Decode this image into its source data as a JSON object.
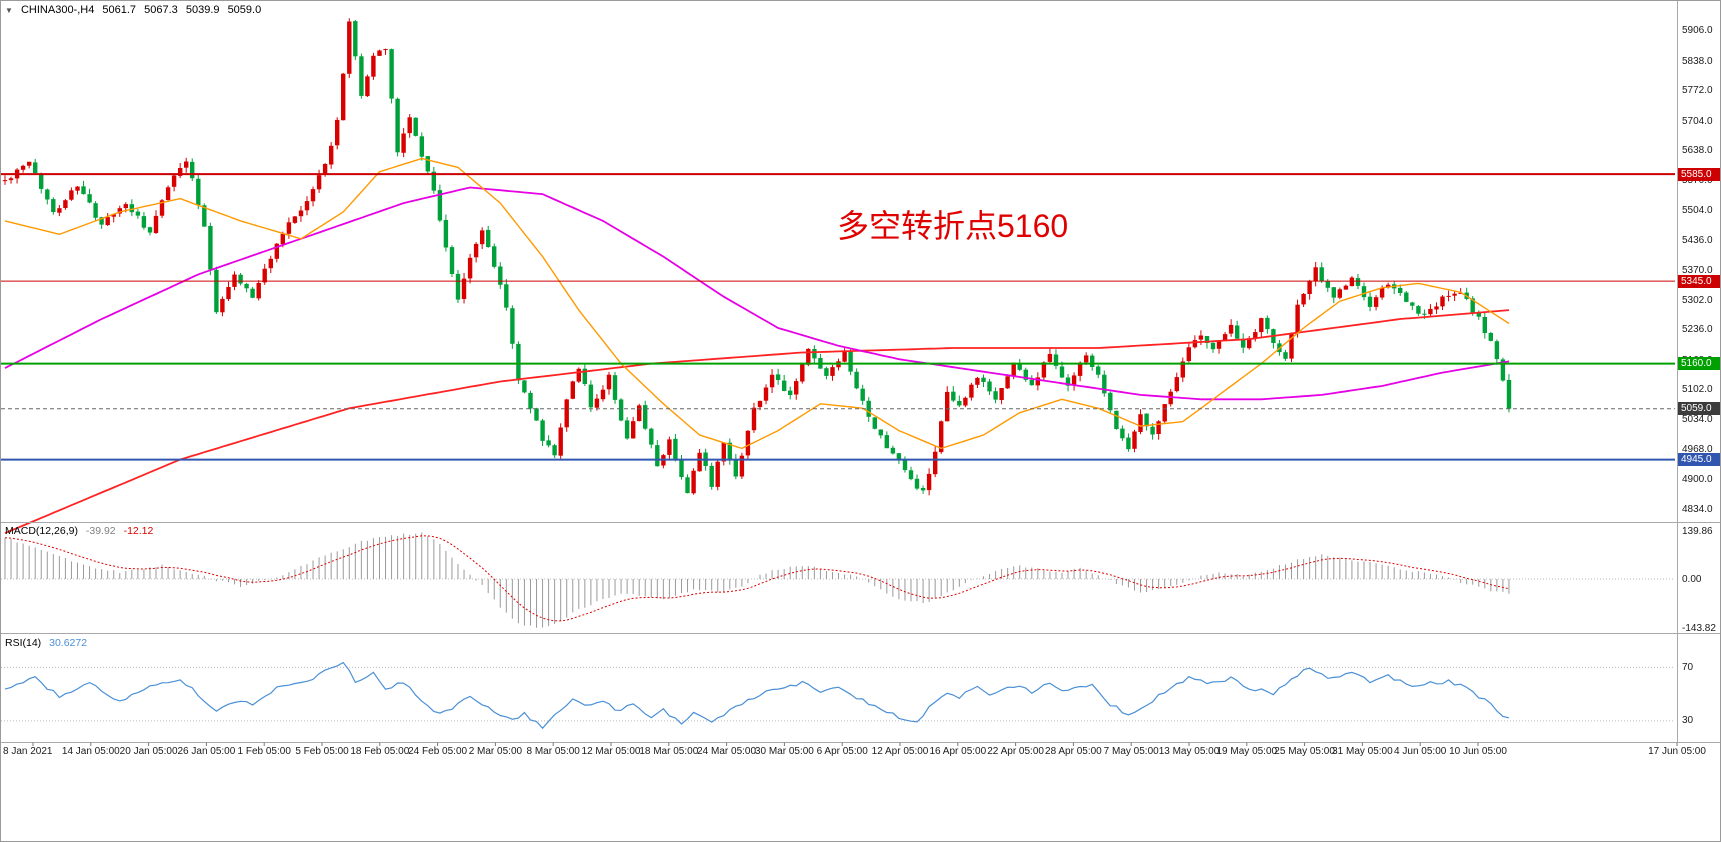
{
  "header": {
    "collapse_icon": "▼",
    "symbol_period": "CHINA300-,H4",
    "open": "5061.7",
    "high": "5067.3",
    "low": "5039.9",
    "close": "5059.0"
  },
  "annotation": {
    "text": "多空转折点5160",
    "color": "#e00000"
  },
  "indicators": {
    "macd_label": "MACD(12,26,9)",
    "macd_value": "-39.92",
    "macd_signal": "-12.12",
    "rsi_label": "RSI(14)",
    "rsi_value": "30.6272"
  },
  "chart_data": {
    "type": "candlestick",
    "symbol": "CHINA300-",
    "timeframe": "H4",
    "last_open": 5061.7,
    "last_high": 5067.3,
    "last_low": 5039.9,
    "last_close": 5059.0,
    "colors": {
      "bull": "#d90000",
      "bear": "#00a13a",
      "background": "#ffffff"
    },
    "ylim": [
      4805,
      5973
    ],
    "price_axis_ticks": [
      5906,
      5838,
      5772,
      5704,
      5638,
      5570,
      5504,
      5436,
      5370,
      5302,
      5236,
      5168,
      5102,
      5034,
      4968,
      4900,
      4834
    ],
    "price_badges": [
      {
        "label": "5585.0",
        "price": 5585,
        "color": "#cc0000"
      },
      {
        "label": "5345.0",
        "price": 5345,
        "color": "#cc0000"
      },
      {
        "label": "5160.0",
        "price": 5160,
        "color": "#00a000"
      },
      {
        "label": "5059.0",
        "price": 5059,
        "color": "#3c3c3c"
      },
      {
        "label": "4945.0",
        "price": 4945,
        "color": "#3056b0"
      }
    ],
    "hlines": [
      {
        "price": 5585,
        "color": "#cc0000",
        "thickness": 2,
        "style": "solid"
      },
      {
        "price": 5345,
        "color": "#cc0000",
        "thickness": 1,
        "style": "solid"
      },
      {
        "price": 5160,
        "color": "#00a000",
        "thickness": 2,
        "style": "solid"
      },
      {
        "price": 4945,
        "color": "#3056b0",
        "thickness": 2,
        "style": "solid"
      },
      {
        "price": 5059,
        "color": "#666666",
        "thickness": 1,
        "style": "dash"
      }
    ],
    "price_keyframes": [
      [
        0,
        5570
      ],
      [
        4,
        5610
      ],
      [
        8,
        5500
      ],
      [
        12,
        5560
      ],
      [
        16,
        5470
      ],
      [
        20,
        5520
      ],
      [
        24,
        5450
      ],
      [
        27,
        5560
      ],
      [
        30,
        5620
      ],
      [
        33,
        5470
      ],
      [
        35,
        5280
      ],
      [
        38,
        5360
      ],
      [
        41,
        5310
      ],
      [
        44,
        5400
      ],
      [
        47,
        5470
      ],
      [
        50,
        5520
      ],
      [
        53,
        5610
      ],
      [
        55,
        5700
      ],
      [
        57,
        5930
      ],
      [
        59,
        5760
      ],
      [
        61,
        5850
      ],
      [
        63,
        5870
      ],
      [
        65,
        5640
      ],
      [
        67,
        5710
      ],
      [
        69,
        5630
      ],
      [
        71,
        5550
      ],
      [
        73,
        5420
      ],
      [
        75,
        5300
      ],
      [
        77,
        5400
      ],
      [
        79,
        5460
      ],
      [
        81,
        5380
      ],
      [
        83,
        5290
      ],
      [
        85,
        5120
      ],
      [
        87,
        5065
      ],
      [
        89,
        4990
      ],
      [
        91,
        4960
      ],
      [
        93,
        5080
      ],
      [
        95,
        5155
      ],
      [
        97,
        5060
      ],
      [
        100,
        5130
      ],
      [
        103,
        4990
      ],
      [
        105,
        5060
      ],
      [
        108,
        4930
      ],
      [
        110,
        4990
      ],
      [
        113,
        4870
      ],
      [
        115,
        4960
      ],
      [
        117,
        4890
      ],
      [
        119,
        4990
      ],
      [
        121,
        4910
      ],
      [
        124,
        5060
      ],
      [
        127,
        5130
      ],
      [
        130,
        5090
      ],
      [
        133,
        5190
      ],
      [
        136,
        5130
      ],
      [
        139,
        5180
      ],
      [
        141,
        5100
      ],
      [
        144,
        5010
      ],
      [
        147,
        4960
      ],
      [
        150,
        4900
      ],
      [
        152,
        4870
      ],
      [
        154,
        4960
      ],
      [
        156,
        5090
      ],
      [
        158,
        5060
      ],
      [
        161,
        5130
      ],
      [
        164,
        5080
      ],
      [
        167,
        5160
      ],
      [
        170,
        5110
      ],
      [
        173,
        5180
      ],
      [
        176,
        5110
      ],
      [
        179,
        5180
      ],
      [
        181,
        5130
      ],
      [
        184,
        5020
      ],
      [
        186,
        4970
      ],
      [
        188,
        5050
      ],
      [
        190,
        5000
      ],
      [
        192,
        5070
      ],
      [
        195,
        5170
      ],
      [
        198,
        5230
      ],
      [
        200,
        5190
      ],
      [
        203,
        5250
      ],
      [
        205,
        5190
      ],
      [
        208,
        5260
      ],
      [
        210,
        5210
      ],
      [
        212,
        5170
      ],
      [
        214,
        5290
      ],
      [
        217,
        5370
      ],
      [
        220,
        5310
      ],
      [
        223,
        5350
      ],
      [
        226,
        5290
      ],
      [
        229,
        5340
      ],
      [
        232,
        5300
      ],
      [
        235,
        5265
      ],
      [
        238,
        5305
      ],
      [
        241,
        5320
      ],
      [
        244,
        5260
      ],
      [
        246,
        5210
      ],
      [
        248,
        5120
      ],
      [
        249,
        5059
      ]
    ],
    "moving_averages": [
      {
        "name": "ma-slow-red",
        "color": "#ff2222",
        "width": 1.8,
        "keyframes": [
          [
            0,
            4780
          ],
          [
            29,
            4945
          ],
          [
            57,
            5060
          ],
          [
            82,
            5120
          ],
          [
            107,
            5160
          ],
          [
            132,
            5185
          ],
          [
            157,
            5195
          ],
          [
            181,
            5195
          ],
          [
            206,
            5215
          ],
          [
            231,
            5260
          ],
          [
            249,
            5280
          ]
        ]
      },
      {
        "name": "ma-mid-magenta",
        "color": "#e600e6",
        "width": 1.8,
        "keyframes": [
          [
            0,
            5150
          ],
          [
            16,
            5260
          ],
          [
            32,
            5360
          ],
          [
            49,
            5440
          ],
          [
            66,
            5520
          ],
          [
            77,
            5555
          ],
          [
            89,
            5540
          ],
          [
            99,
            5480
          ],
          [
            109,
            5400
          ],
          [
            119,
            5310
          ],
          [
            128,
            5240
          ],
          [
            138,
            5200
          ],
          [
            148,
            5170
          ],
          [
            158,
            5150
          ],
          [
            168,
            5130
          ],
          [
            178,
            5110
          ],
          [
            188,
            5090
          ],
          [
            198,
            5080
          ],
          [
            208,
            5080
          ],
          [
            218,
            5090
          ],
          [
            228,
            5110
          ],
          [
            238,
            5140
          ],
          [
            249,
            5165
          ]
        ]
      },
      {
        "name": "ma-fast-orange",
        "color": "#ff9900",
        "width": 1.4,
        "keyframes": [
          [
            0,
            5480
          ],
          [
            9,
            5450
          ],
          [
            19,
            5500
          ],
          [
            29,
            5530
          ],
          [
            39,
            5480
          ],
          [
            49,
            5440
          ],
          [
            56,
            5500
          ],
          [
            62,
            5590
          ],
          [
            69,
            5620
          ],
          [
            75,
            5600
          ],
          [
            82,
            5520
          ],
          [
            89,
            5400
          ],
          [
            95,
            5280
          ],
          [
            102,
            5160
          ],
          [
            109,
            5070
          ],
          [
            115,
            5000
          ],
          [
            122,
            4970
          ],
          [
            128,
            5010
          ],
          [
            135,
            5070
          ],
          [
            142,
            5060
          ],
          [
            148,
            5010
          ],
          [
            155,
            4970
          ],
          [
            162,
            5000
          ],
          [
            168,
            5050
          ],
          [
            175,
            5080
          ],
          [
            181,
            5060
          ],
          [
            188,
            5020
          ],
          [
            195,
            5030
          ],
          [
            201,
            5090
          ],
          [
            208,
            5160
          ],
          [
            215,
            5240
          ],
          [
            221,
            5300
          ],
          [
            228,
            5330
          ],
          [
            234,
            5340
          ],
          [
            241,
            5320
          ],
          [
            249,
            5250
          ]
        ]
      }
    ],
    "macd": {
      "label": "MACD(12,26,9)",
      "value": -39.92,
      "signal": -12.12,
      "histogram_color": "#9a9a9a",
      "signal_color": "#dd0000",
      "ylim": [
        -154,
        163
      ],
      "axis_ticks": [
        {
          "label": "139.86",
          "value": 139.86
        },
        {
          "label": "0.00",
          "value": 0
        },
        {
          "label": "-143.82",
          "value": -143.82
        }
      ],
      "keyframes": [
        [
          0,
          120
        ],
        [
          7,
          80
        ],
        [
          13,
          40
        ],
        [
          19,
          20
        ],
        [
          26,
          40
        ],
        [
          32,
          10
        ],
        [
          39,
          -20
        ],
        [
          46,
          10
        ],
        [
          52,
          60
        ],
        [
          59,
          110
        ],
        [
          66,
          130
        ],
        [
          69,
          135
        ],
        [
          72,
          100
        ],
        [
          75,
          40
        ],
        [
          79,
          -20
        ],
        [
          82,
          -80
        ],
        [
          85,
          -130
        ],
        [
          89,
          -143
        ],
        [
          92,
          -120
        ],
        [
          95,
          -90
        ],
        [
          99,
          -60
        ],
        [
          102,
          -40
        ],
        [
          105,
          -50
        ],
        [
          109,
          -60
        ],
        [
          112,
          -40
        ],
        [
          115,
          -30
        ],
        [
          119,
          -40
        ],
        [
          122,
          -20
        ],
        [
          125,
          10
        ],
        [
          128,
          30
        ],
        [
          132,
          40
        ],
        [
          135,
          30
        ],
        [
          138,
          20
        ],
        [
          142,
          0
        ],
        [
          145,
          -30
        ],
        [
          148,
          -60
        ],
        [
          152,
          -70
        ],
        [
          155,
          -50
        ],
        [
          158,
          -20
        ],
        [
          162,
          10
        ],
        [
          165,
          30
        ],
        [
          168,
          40
        ],
        [
          171,
          30
        ],
        [
          175,
          20
        ],
        [
          178,
          30
        ],
        [
          181,
          10
        ],
        [
          185,
          -20
        ],
        [
          188,
          -40
        ],
        [
          191,
          -30
        ],
        [
          195,
          -10
        ],
        [
          198,
          10
        ],
        [
          201,
          20
        ],
        [
          205,
          10
        ],
        [
          208,
          20
        ],
        [
          211,
          40
        ],
        [
          215,
          60
        ],
        [
          218,
          70
        ],
        [
          221,
          60
        ],
        [
          225,
          50
        ],
        [
          228,
          40
        ],
        [
          231,
          30
        ],
        [
          234,
          20
        ],
        [
          238,
          10
        ],
        [
          241,
          -10
        ],
        [
          244,
          -25
        ],
        [
          248,
          -40
        ],
        [
          249,
          -41
        ]
      ]
    },
    "rsi": {
      "label": "RSI(14)",
      "value": 30.6272,
      "line_color": "#4a8fd6",
      "levels": [
        70,
        30
      ],
      "ylim": [
        15,
        95
      ],
      "keyframes": [
        [
          0,
          55
        ],
        [
          5,
          62
        ],
        [
          9,
          48
        ],
        [
          14,
          58
        ],
        [
          19,
          45
        ],
        [
          24,
          55
        ],
        [
          29,
          62
        ],
        [
          32,
          50
        ],
        [
          35,
          38
        ],
        [
          38,
          45
        ],
        [
          41,
          42
        ],
        [
          44,
          52
        ],
        [
          47,
          58
        ],
        [
          51,
          62
        ],
        [
          54,
          70
        ],
        [
          56,
          74
        ],
        [
          58,
          60
        ],
        [
          61,
          65
        ],
        [
          63,
          55
        ],
        [
          66,
          58
        ],
        [
          69,
          45
        ],
        [
          72,
          35
        ],
        [
          75,
          42
        ],
        [
          77,
          48
        ],
        [
          80,
          40
        ],
        [
          84,
          30
        ],
        [
          86,
          35
        ],
        [
          89,
          25
        ],
        [
          91,
          35
        ],
        [
          94,
          45
        ],
        [
          96,
          42
        ],
        [
          99,
          46
        ],
        [
          101,
          38
        ],
        [
          104,
          42
        ],
        [
          107,
          32
        ],
        [
          109,
          38
        ],
        [
          112,
          28
        ],
        [
          114,
          35
        ],
        [
          117,
          30
        ],
        [
          119,
          35
        ],
        [
          122,
          42
        ],
        [
          125,
          50
        ],
        [
          128,
          55
        ],
        [
          132,
          58
        ],
        [
          135,
          52
        ],
        [
          138,
          56
        ],
        [
          142,
          45
        ],
        [
          145,
          40
        ],
        [
          148,
          32
        ],
        [
          151,
          28
        ],
        [
          153,
          40
        ],
        [
          156,
          52
        ],
        [
          158,
          48
        ],
        [
          161,
          55
        ],
        [
          163,
          50
        ],
        [
          167,
          56
        ],
        [
          170,
          52
        ],
        [
          173,
          58
        ],
        [
          176,
          52
        ],
        [
          180,
          58
        ],
        [
          183,
          42
        ],
        [
          186,
          35
        ],
        [
          190,
          45
        ],
        [
          193,
          55
        ],
        [
          196,
          62
        ],
        [
          200,
          58
        ],
        [
          203,
          62
        ],
        [
          206,
          55
        ],
        [
          210,
          50
        ],
        [
          213,
          62
        ],
        [
          216,
          70
        ],
        [
          219,
          62
        ],
        [
          223,
          66
        ],
        [
          226,
          60
        ],
        [
          229,
          64
        ],
        [
          233,
          55
        ],
        [
          236,
          58
        ],
        [
          239,
          60
        ],
        [
          243,
          52
        ],
        [
          246,
          42
        ],
        [
          249,
          31
        ]
      ]
    },
    "time_labels": [
      "8 Jan 2021",
      "14 Jan 05:00",
      "20 Jan 05:00",
      "26 Jan 05:00",
      "1 Feb 05:00",
      "5 Feb 05:00",
      "18 Feb 05:00",
      "24 Feb 05:00",
      "2 Mar 05:00",
      "8 Mar 05:00",
      "12 Mar 05:00",
      "18 Mar 05:00",
      "24 Mar 05:00",
      "30 Mar 05:00",
      "6 Apr 05:00",
      "12 Apr 05:00",
      "16 Apr 05:00",
      "22 Apr 05:00",
      "28 Apr 05:00",
      "7 May 05:00",
      "13 May 05:00",
      "19 May 05:00",
      "25 May 05:00",
      "31 May 05:00",
      "4 Jun 05:00",
      "10 Jun 05:00",
      "17 Jun 05:00"
    ]
  }
}
